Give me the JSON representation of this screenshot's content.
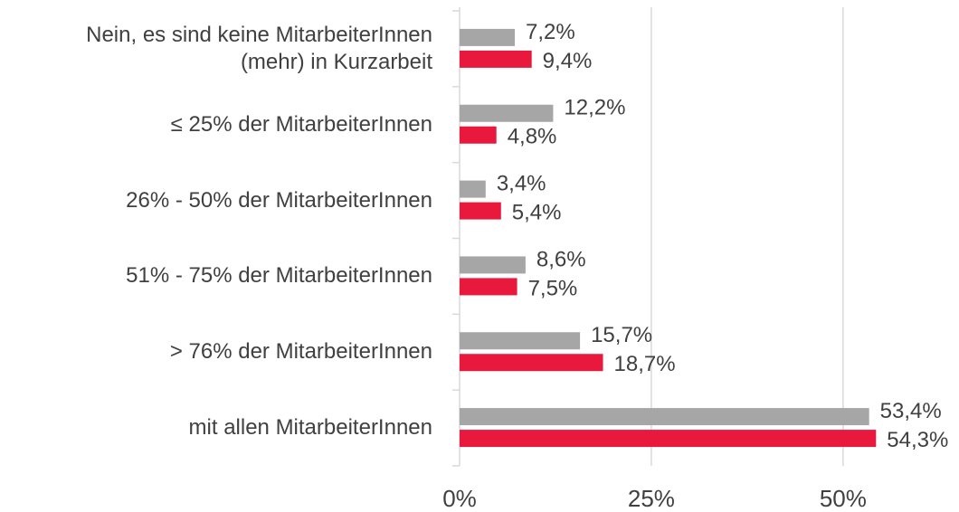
{
  "chart_data": {
    "type": "hbar",
    "categories": [
      "Nein, es sind keine MitarbeiterInnen\n(mehr) in Kurzarbeit",
      "≤ 25% der MitarbeiterInnen",
      "26% - 50% der MitarbeiterInnen",
      "51% - 75% der MitarbeiterInnen",
      "> 76% der MitarbeiterInnen",
      "mit allen MitarbeiterInnen"
    ],
    "series": [
      {
        "color": "#a6a6a6",
        "values": [
          7.2,
          12.2,
          3.4,
          8.6,
          15.7,
          53.4
        ],
        "value_labels": [
          "7,2%",
          "12,2%",
          "3,4%",
          "8,6%",
          "15,7%",
          "53,4%"
        ]
      },
      {
        "color": "#e8193c",
        "values": [
          9.4,
          4.8,
          5.4,
          7.5,
          18.7,
          54.3
        ],
        "value_labels": [
          "9,4%",
          "4,8%",
          "5,4%",
          "7,5%",
          "18,7%",
          "54,3%"
        ]
      }
    ],
    "xlim": [
      0,
      65
    ],
    "xticks": [
      {
        "value": 0,
        "label": "0%"
      },
      {
        "value": 25,
        "label": "25%"
      },
      {
        "value": 50,
        "label": "50%"
      }
    ],
    "grid": true
  }
}
